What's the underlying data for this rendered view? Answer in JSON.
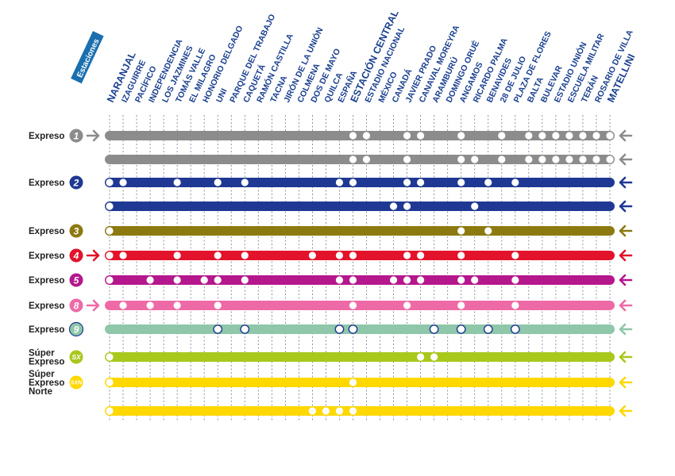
{
  "header": "Estaciones",
  "stations": [
    {
      "name": "NARANJAL",
      "major": true
    },
    {
      "name": "IZAGUIRRE"
    },
    {
      "name": "PACÍFICO"
    },
    {
      "name": "INDEPENDENCIA"
    },
    {
      "name": "LOS JAZMINES"
    },
    {
      "name": "TOMÁS VALLE"
    },
    {
      "name": "EL MILAGRO"
    },
    {
      "name": "HONORIO DELGADO"
    },
    {
      "name": "UNI"
    },
    {
      "name": "PARQUE DEL TRABAJO"
    },
    {
      "name": "CAQUETÁ"
    },
    {
      "name": "RAMÓN CASTILLA"
    },
    {
      "name": "TACNA"
    },
    {
      "name": "JIRÓN DE LA UNIÓN"
    },
    {
      "name": "COLMENA"
    },
    {
      "name": "DOS DE MAYO"
    },
    {
      "name": "QUILCA"
    },
    {
      "name": "ESPAÑA"
    },
    {
      "name": "ESTACIÓN CENTRAL",
      "major": true
    },
    {
      "name": "ESTADIO NACIONAL"
    },
    {
      "name": "MÉXICO"
    },
    {
      "name": "CANADÁ"
    },
    {
      "name": "JAVIER PRADO"
    },
    {
      "name": "CANAVAL MOREYRA"
    },
    {
      "name": "ARAMBURÚ"
    },
    {
      "name": "DOMINGO ORUÉ"
    },
    {
      "name": "ANGAMOS"
    },
    {
      "name": "RICARDO PALMA"
    },
    {
      "name": "BENAVIDES"
    },
    {
      "name": "28 DE JULIO"
    },
    {
      "name": "PLAZA DE FLORES"
    },
    {
      "name": "BALTA"
    },
    {
      "name": "BULEVAR"
    },
    {
      "name": "ESTADIO UNIÓN"
    },
    {
      "name": "ESCUELA MILITAR"
    },
    {
      "name": "TERÁN"
    },
    {
      "name": "ROSARIO DE VILLA"
    },
    {
      "name": "MATELLINI",
      "major": true
    }
  ],
  "services": [
    {
      "label": [
        "Expreso"
      ],
      "badge": "1",
      "color": "#8c8c8c",
      "dark_dots": false,
      "arrow_left": true,
      "stops": [
        18,
        19,
        22,
        23,
        26,
        29,
        31,
        32,
        33,
        34,
        35,
        36,
        37
      ]
    },
    {
      "label": [],
      "badge": "",
      "color": "#8c8c8c",
      "dark_dots": false,
      "arrow_left": false,
      "stops": [
        18,
        19,
        22,
        26,
        27,
        29,
        31,
        32,
        33,
        34,
        35,
        36,
        37
      ]
    },
    {
      "label": [
        "Expreso"
      ],
      "badge": "2",
      "color": "#1f3893",
      "dark_dots": false,
      "arrow_left": false,
      "stops": [
        0,
        1,
        5,
        8,
        10,
        17,
        18,
        22,
        23,
        26,
        28,
        30
      ]
    },
    {
      "label": [],
      "badge": "",
      "color": "#1f3893",
      "dark_dots": false,
      "arrow_left": false,
      "stops": [
        0,
        21,
        22,
        27
      ]
    },
    {
      "label": [
        "Expreso"
      ],
      "badge": "3",
      "color": "#8c7a10",
      "dark_dots": false,
      "arrow_left": false,
      "stops": [
        0,
        26,
        28
      ]
    },
    {
      "label": [
        "Expreso"
      ],
      "badge": "4",
      "color": "#e2132a",
      "dark_dots": false,
      "arrow_left": true,
      "stops": [
        0,
        1,
        5,
        8,
        10,
        15,
        17,
        18,
        22,
        23,
        26,
        30
      ]
    },
    {
      "label": [
        "Expreso"
      ],
      "badge": "5",
      "color": "#b5178c",
      "dark_dots": false,
      "arrow_left": false,
      "stops": [
        0,
        3,
        5,
        7,
        8,
        10,
        17,
        18,
        21,
        22,
        23,
        26,
        27,
        30
      ]
    },
    {
      "label": [
        "Expreso"
      ],
      "badge": "8",
      "color": "#ee6aa7",
      "dark_dots": false,
      "arrow_left": true,
      "stops": [
        1,
        3,
        5,
        8,
        18,
        22,
        26,
        30
      ]
    },
    {
      "label": [
        "Expreso"
      ],
      "badge": "9",
      "color": "#8ec7a9",
      "dark_dots": true,
      "arrow_left": false,
      "stops": [
        8,
        10,
        17,
        18,
        24,
        26,
        28,
        30
      ]
    },
    {
      "label": [
        "Súper",
        "Expreso"
      ],
      "badge": "SX",
      "color": "#a8c81b",
      "dark_dots": false,
      "arrow_left": false,
      "stops": [
        0,
        23,
        24
      ]
    },
    {
      "label": [
        "Súper",
        "Expreso",
        "Norte"
      ],
      "badge": "SXN",
      "color": "#ffd800",
      "dark_dots": false,
      "arrow_left": false,
      "stops": [
        0,
        18
      ]
    },
    {
      "label": [],
      "badge": "",
      "color": "#ffd800",
      "dark_dots": false,
      "arrow_left": false,
      "stops": [
        0,
        15,
        16,
        17,
        18
      ]
    }
  ]
}
